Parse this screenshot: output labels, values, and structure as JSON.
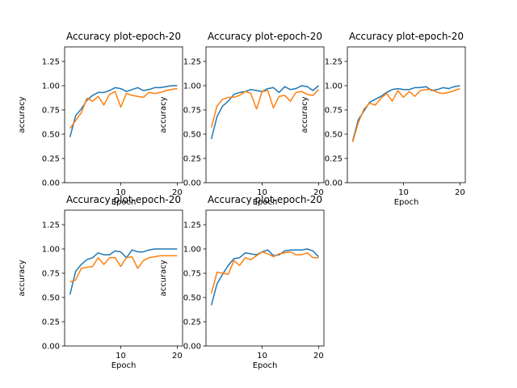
{
  "chart_data": [
    {
      "type": "line",
      "title": "Accuracy plot-epoch-20",
      "xlabel": "Epoch",
      "ylabel": "accuracy",
      "xlim": [
        0.05,
        20.95
      ],
      "ylim": [
        0.0,
        1.4
      ],
      "xticks": [
        10,
        20
      ],
      "yticks": [
        0.0,
        0.25,
        0.5,
        0.75,
        1.0,
        1.25
      ],
      "x": [
        1,
        2,
        3,
        4,
        5,
        6,
        7,
        8,
        9,
        10,
        11,
        12,
        13,
        14,
        15,
        16,
        17,
        18,
        19,
        20
      ],
      "series": [
        {
          "color": "#1f77b4",
          "values": [
            0.47,
            0.69,
            0.76,
            0.85,
            0.9,
            0.93,
            0.93,
            0.95,
            0.98,
            0.97,
            0.94,
            0.96,
            0.98,
            0.95,
            0.96,
            0.98,
            0.98,
            0.99,
            1.0,
            1.0
          ]
        },
        {
          "color": "#ff7f0e",
          "values": [
            0.56,
            0.64,
            0.72,
            0.87,
            0.84,
            0.89,
            0.8,
            0.91,
            0.94,
            0.78,
            0.92,
            0.9,
            0.89,
            0.88,
            0.93,
            0.92,
            0.93,
            0.95,
            0.96,
            0.97
          ]
        }
      ]
    },
    {
      "type": "line",
      "title": "Accuracy plot-epoch-20",
      "xlabel": "Epoch",
      "ylabel": "accuracy",
      "xlim": [
        0.05,
        20.95
      ],
      "ylim": [
        0.0,
        1.4
      ],
      "xticks": [
        10,
        20
      ],
      "yticks": [
        0.0,
        0.25,
        0.5,
        0.75,
        1.0,
        1.25
      ],
      "x": [
        1,
        2,
        3,
        4,
        5,
        6,
        7,
        8,
        9,
        10,
        11,
        12,
        13,
        14,
        15,
        16,
        17,
        18,
        19,
        20
      ],
      "series": [
        {
          "color": "#1f77b4",
          "values": [
            0.45,
            0.68,
            0.79,
            0.84,
            0.91,
            0.93,
            0.94,
            0.96,
            0.95,
            0.94,
            0.97,
            0.98,
            0.93,
            0.99,
            0.96,
            0.97,
            1.0,
            0.99,
            0.95,
            1.0
          ]
        },
        {
          "color": "#ff7f0e",
          "values": [
            0.57,
            0.79,
            0.86,
            0.88,
            0.88,
            0.9,
            0.94,
            0.92,
            0.76,
            0.94,
            0.95,
            0.77,
            0.89,
            0.9,
            0.84,
            0.93,
            0.94,
            0.91,
            0.9,
            0.96
          ]
        }
      ]
    },
    {
      "type": "line",
      "title": "Accuracy plot-epoch-20",
      "xlabel": "Epoch",
      "ylabel": "accuracy",
      "xlim": [
        0.05,
        20.95
      ],
      "ylim": [
        0.0,
        1.4
      ],
      "xticks": [
        10,
        20
      ],
      "yticks": [
        0.0,
        0.25,
        0.5,
        0.75,
        1.0,
        1.25
      ],
      "x": [
        1,
        2,
        3,
        4,
        5,
        6,
        7,
        8,
        9,
        10,
        11,
        12,
        13,
        14,
        15,
        16,
        17,
        18,
        19,
        20
      ],
      "series": [
        {
          "color": "#1f77b4",
          "values": [
            0.43,
            0.65,
            0.74,
            0.83,
            0.86,
            0.89,
            0.93,
            0.96,
            0.97,
            0.96,
            0.96,
            0.98,
            0.98,
            0.99,
            0.95,
            0.96,
            0.98,
            0.97,
            0.99,
            1.0
          ]
        },
        {
          "color": "#ff7f0e",
          "values": [
            0.42,
            0.62,
            0.76,
            0.82,
            0.8,
            0.87,
            0.92,
            0.84,
            0.95,
            0.88,
            0.94,
            0.89,
            0.95,
            0.96,
            0.96,
            0.93,
            0.92,
            0.93,
            0.95,
            0.97
          ]
        }
      ]
    },
    {
      "type": "line",
      "title": "Accuracy plot-epoch-20",
      "xlabel": "Epoch",
      "ylabel": "accuracy",
      "xlim": [
        0.05,
        20.95
      ],
      "ylim": [
        0.0,
        1.4
      ],
      "xticks": [
        10,
        20
      ],
      "yticks": [
        0.0,
        0.25,
        0.5,
        0.75,
        1.0,
        1.25
      ],
      "x": [
        1,
        2,
        3,
        4,
        5,
        6,
        7,
        8,
        9,
        10,
        11,
        12,
        13,
        14,
        15,
        16,
        17,
        18,
        19,
        20
      ],
      "series": [
        {
          "color": "#1f77b4",
          "values": [
            0.53,
            0.77,
            0.84,
            0.89,
            0.91,
            0.96,
            0.94,
            0.94,
            0.98,
            0.97,
            0.91,
            0.99,
            0.97,
            0.97,
            0.99,
            1.0,
            1.0,
            1.0,
            1.0,
            1.0
          ]
        },
        {
          "color": "#ff7f0e",
          "values": [
            0.66,
            0.68,
            0.8,
            0.81,
            0.82,
            0.91,
            0.84,
            0.91,
            0.91,
            0.82,
            0.91,
            0.92,
            0.8,
            0.88,
            0.91,
            0.92,
            0.93,
            0.93,
            0.93,
            0.93
          ]
        }
      ]
    },
    {
      "type": "line",
      "title": "Accuracy plot-epoch-20",
      "xlabel": "Epoch",
      "ylabel": "accuracy",
      "xlim": [
        0.05,
        20.95
      ],
      "ylim": [
        0.0,
        1.4
      ],
      "xticks": [
        10,
        20
      ],
      "yticks": [
        0.0,
        0.25,
        0.5,
        0.75,
        1.0,
        1.25
      ],
      "x": [
        1,
        2,
        3,
        4,
        5,
        6,
        7,
        8,
        9,
        10,
        11,
        12,
        13,
        14,
        15,
        16,
        17,
        18,
        19,
        20
      ],
      "series": [
        {
          "color": "#1f77b4",
          "values": [
            0.42,
            0.64,
            0.74,
            0.83,
            0.9,
            0.91,
            0.96,
            0.95,
            0.94,
            0.97,
            0.99,
            0.93,
            0.94,
            0.98,
            0.99,
            0.99,
            0.99,
            1.0,
            0.98,
            0.92
          ]
        },
        {
          "color": "#ff7f0e",
          "values": [
            0.54,
            0.76,
            0.75,
            0.74,
            0.88,
            0.83,
            0.91,
            0.89,
            0.93,
            0.97,
            0.95,
            0.92,
            0.95,
            0.96,
            0.97,
            0.94,
            0.94,
            0.96,
            0.91,
            0.91
          ]
        }
      ]
    }
  ]
}
